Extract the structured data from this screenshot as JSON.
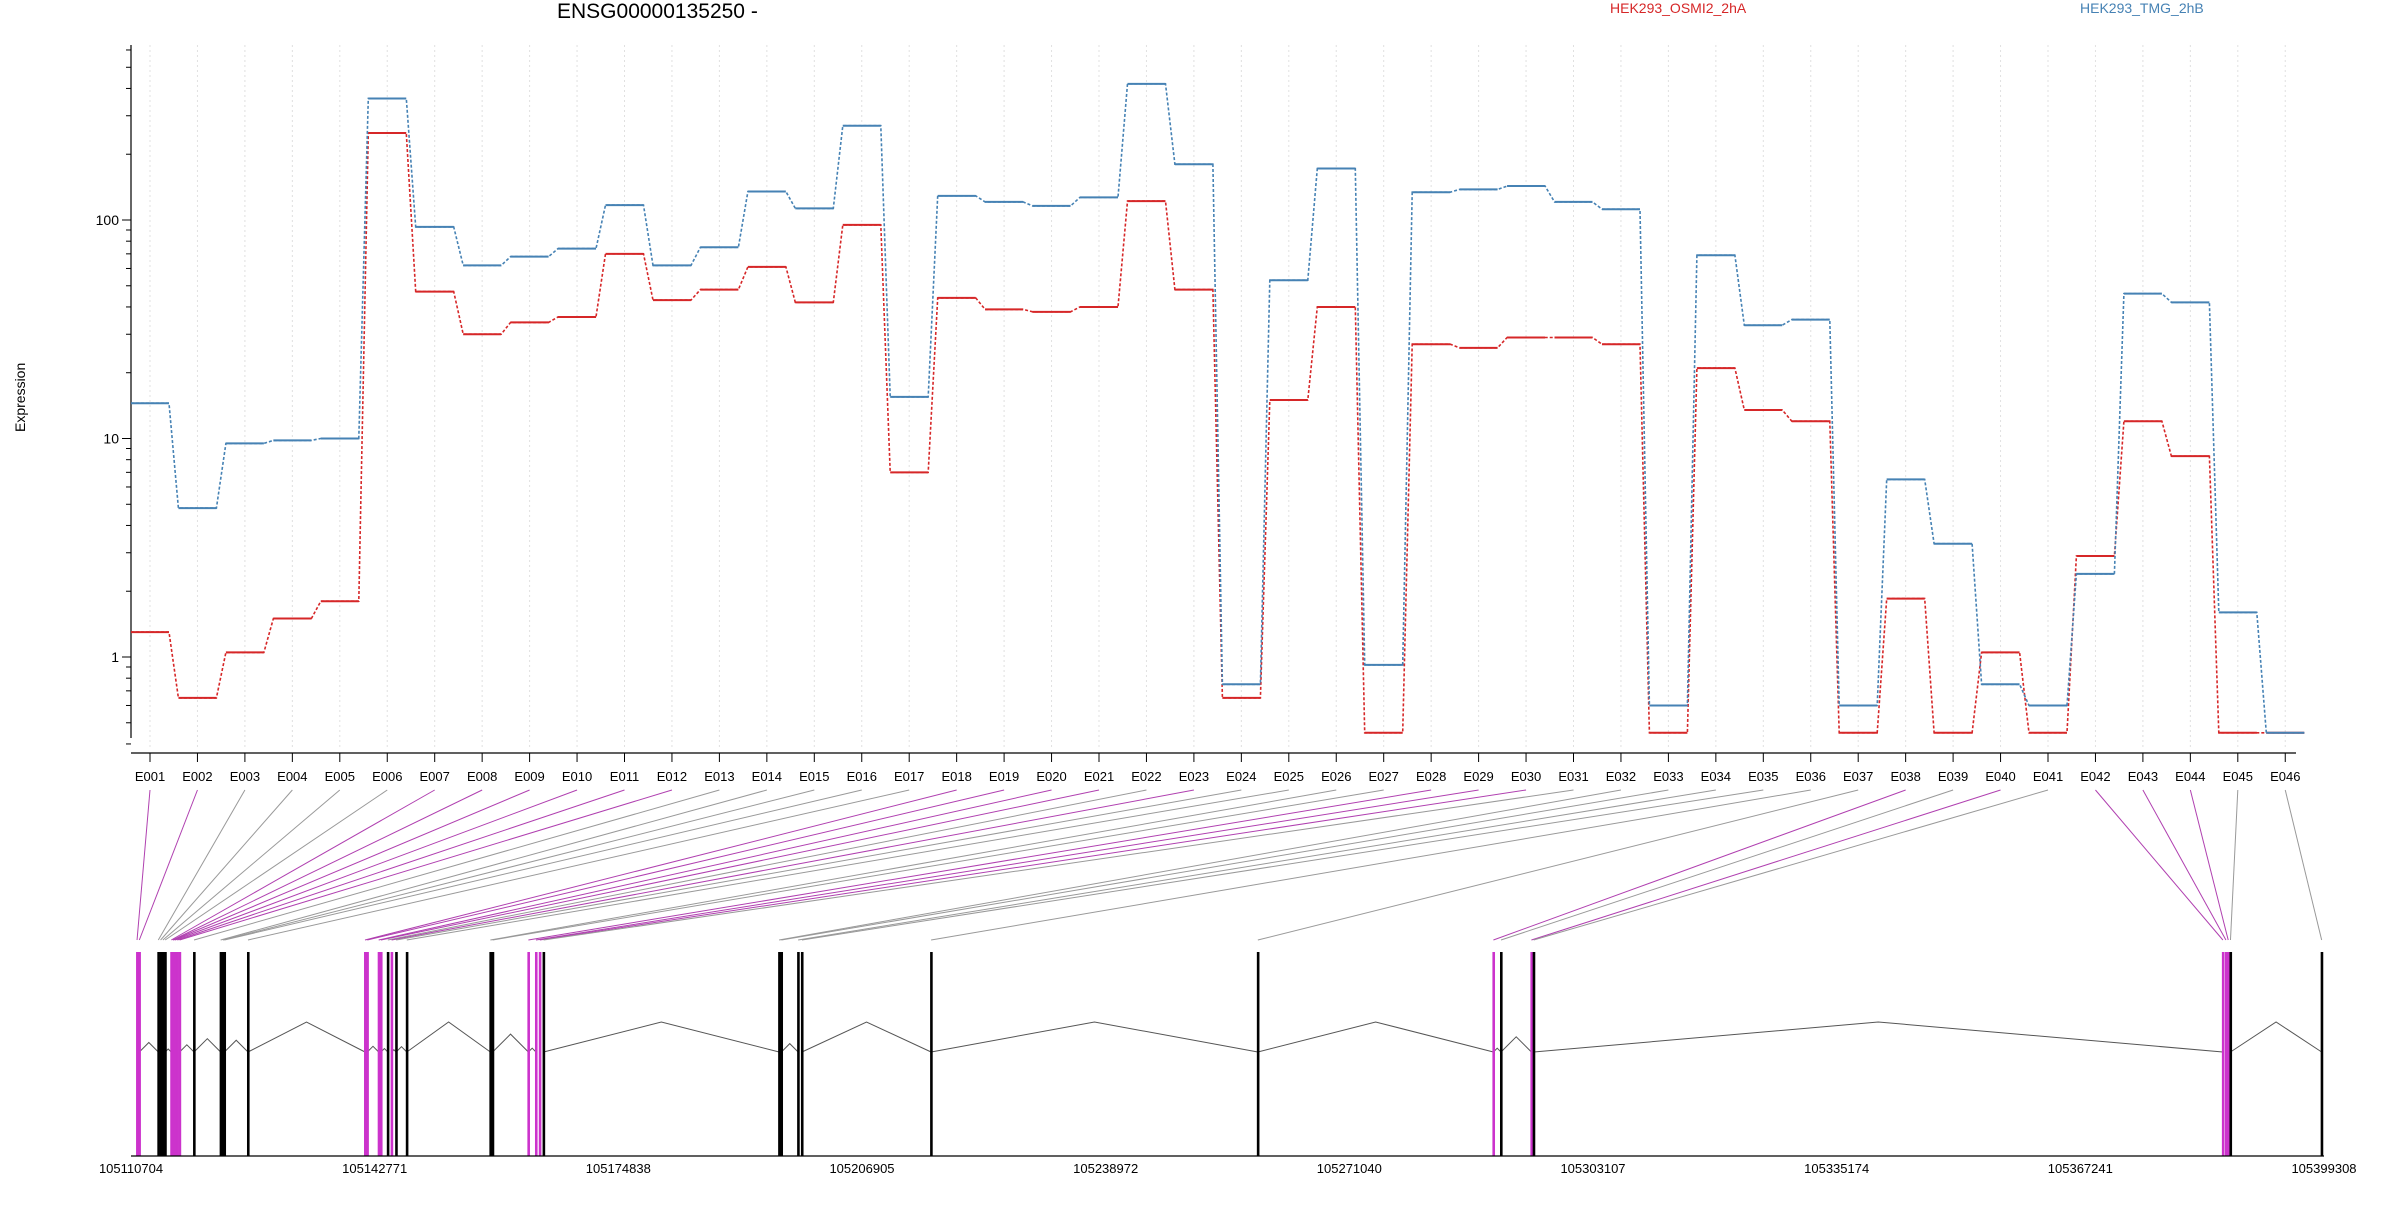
{
  "chart_data": {
    "type": "line",
    "title": "ENSG00000135250 -",
    "ylabel": "Expression",
    "xlabel": "",
    "y_scale": "log",
    "ylim": [
      0.4,
      600
    ],
    "y_ticks": [
      1,
      10,
      100
    ],
    "y_tick_labels": [
      "1",
      "10",
      "100"
    ],
    "grid": "vertical dotted lines at each exon",
    "legend_placement": "top",
    "categories": [
      "E001",
      "E002",
      "E003",
      "E004",
      "E005",
      "E006",
      "E007",
      "E008",
      "E009",
      "E010",
      "E011",
      "E012",
      "E013",
      "E014",
      "E015",
      "E016",
      "E017",
      "E018",
      "E019",
      "E020",
      "E021",
      "E022",
      "E023",
      "E024",
      "E025",
      "E026",
      "E027",
      "E028",
      "E029",
      "E030",
      "E031",
      "E032",
      "E033",
      "E034",
      "E035",
      "E036",
      "E037",
      "E038",
      "E039",
      "E040",
      "E041",
      "E042",
      "E043",
      "E044",
      "E045",
      "E046"
    ],
    "series": [
      {
        "name": "HEK293_OSMI2_2hA",
        "color": "#d62728",
        "values": [
          1.3,
          0.65,
          1.05,
          1.5,
          1.8,
          250,
          47,
          30,
          34,
          36,
          70,
          43,
          48,
          61,
          42,
          95,
          7,
          44,
          39,
          38,
          40,
          122,
          48,
          0.65,
          15,
          40,
          0.45,
          27,
          26,
          29,
          29,
          27,
          0.45,
          21,
          13.5,
          12,
          0.45,
          1.85,
          0.45,
          1.05,
          0.45,
          2.9,
          12,
          8.3,
          0.45,
          0.45
        ]
      },
      {
        "name": "HEK293_TMG_2hB",
        "color": "#4682b4",
        "values": [
          14.5,
          4.8,
          9.5,
          9.8,
          10,
          360,
          93,
          62,
          68,
          74,
          117,
          62,
          75,
          135,
          113,
          270,
          15.5,
          129,
          121,
          116,
          127,
          420,
          180,
          0.75,
          53,
          172,
          0.92,
          134,
          138,
          143,
          121,
          112,
          0.6,
          69,
          33,
          35,
          0.6,
          6.5,
          3.3,
          0.75,
          0.6,
          2.4,
          46,
          42,
          1.6,
          0.45
        ]
      }
    ],
    "genome_axis": {
      "range": [
        105110704,
        105399308
      ],
      "tick_labels": [
        "105110704",
        "105142771",
        "105174838",
        "105206905",
        "105238972",
        "105271040",
        "105303107",
        "105335174",
        "105367241",
        "105399308"
      ]
    }
  }
}
